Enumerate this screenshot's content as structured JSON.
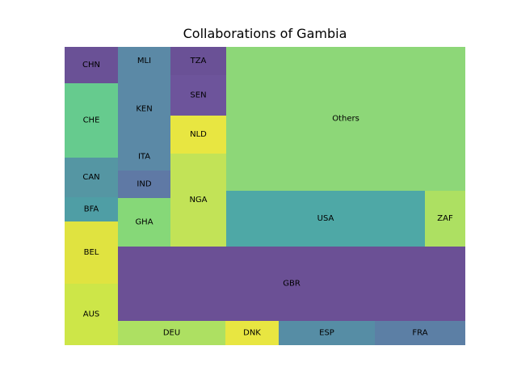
{
  "chart_data": {
    "type": "treemap",
    "title": "Collaborations of Gambia",
    "tiles": [
      {
        "label": "CHN",
        "color": "#6a5196"
      },
      {
        "label": "CHE",
        "color": "#66cb8e"
      },
      {
        "label": "CAN",
        "color": "#5596a3"
      },
      {
        "label": "BFA",
        "color": "#4f9ea5"
      },
      {
        "label": "BEL",
        "color": "#e0e340"
      },
      {
        "label": "AUS",
        "color": "#cde648"
      },
      {
        "label": "MLI",
        "color": "#5b89a6"
      },
      {
        "label": "KEN",
        "color": "#5b89a6"
      },
      {
        "label": "ITA",
        "color": "#5b89a6"
      },
      {
        "label": "IND",
        "color": "#5f79a5"
      },
      {
        "label": "GHA",
        "color": "#86d878"
      },
      {
        "label": "TZA",
        "color": "#6a5196"
      },
      {
        "label": "SEN",
        "color": "#6d549b"
      },
      {
        "label": "NLD",
        "color": "#e8e641"
      },
      {
        "label": "NGA",
        "color": "#c2e357"
      },
      {
        "label": "Others",
        "color": "#8dd778"
      },
      {
        "label": "USA",
        "color": "#4ea8a6"
      },
      {
        "label": "ZAF",
        "color": "#ade062"
      },
      {
        "label": "GBR",
        "color": "#6b5095"
      },
      {
        "label": "DEU",
        "color": "#ade062"
      },
      {
        "label": "DNK",
        "color": "#e8e641"
      },
      {
        "label": "ESP",
        "color": "#568da5"
      },
      {
        "label": "FRA",
        "color": "#5c7fa5"
      }
    ]
  }
}
